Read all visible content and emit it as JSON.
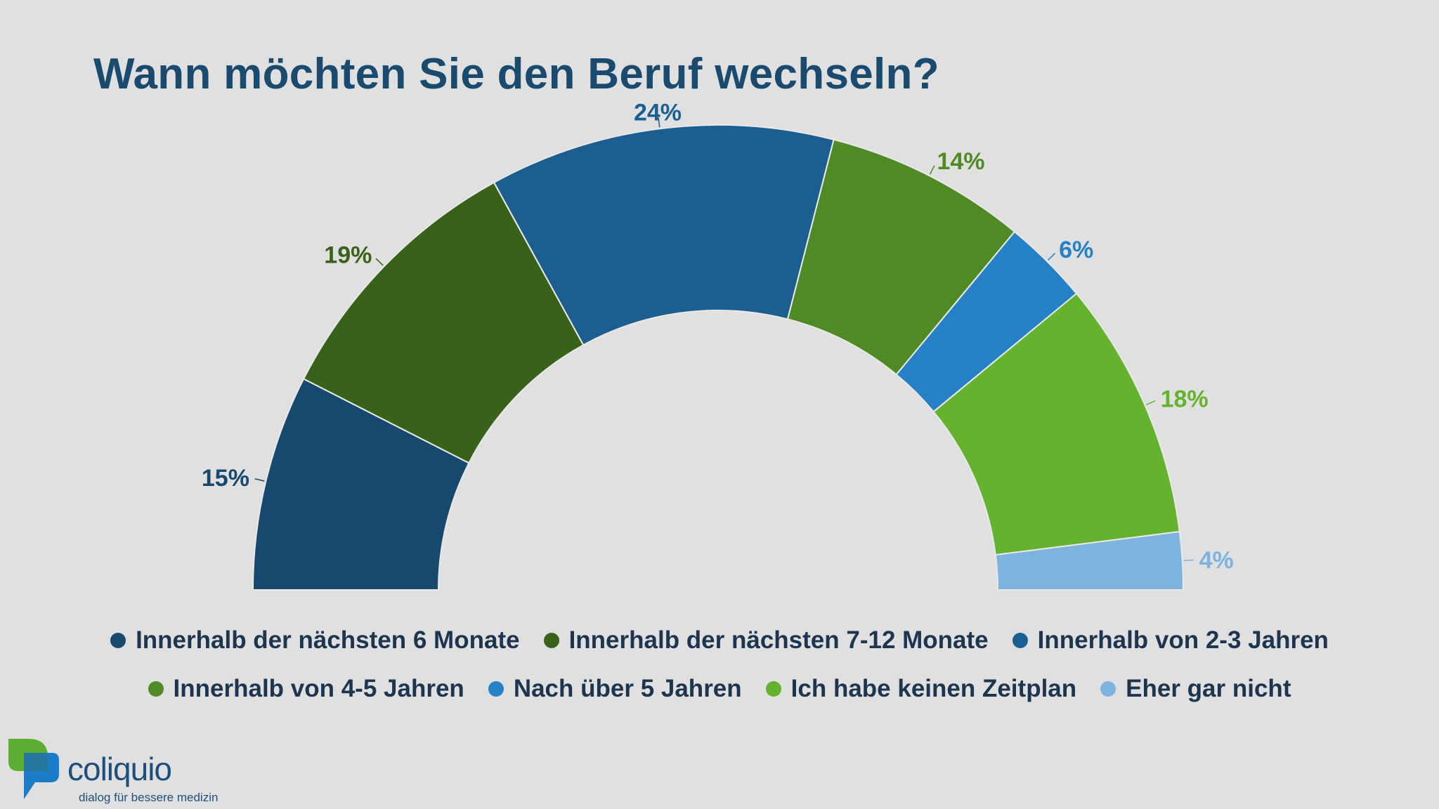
{
  "chart_data": {
    "type": "pie",
    "variant": "semicircle-donut",
    "title": "Wann möchten Sie den Beruf wechseln?",
    "unit": "%",
    "legend_position": "bottom",
    "slices": [
      {
        "label": "Innerhalb der nächsten 6 Monate",
        "value": 15,
        "value_label": "15%",
        "color": "#16496d"
      },
      {
        "label": "Innerhalb der nächsten 7-12 Monate",
        "value": 19,
        "value_label": "19%",
        "color": "#38621a"
      },
      {
        "label": "Innerhalb von 2-3 Jahren",
        "value": 24,
        "value_label": "24%",
        "color": "#1c5e90"
      },
      {
        "label": "Innerhalb von 4-5 Jahren",
        "value": 14,
        "value_label": "14%",
        "color": "#4f8a25"
      },
      {
        "label": "Nach über 5 Jahren",
        "value": 6,
        "value_label": "6%",
        "color": "#2680c6"
      },
      {
        "label": "Ich habe keinen Zeitplan",
        "value": 18,
        "value_label": "18%",
        "color": "#64b22e"
      },
      {
        "label": "Eher gar nicht",
        "value": 4,
        "value_label": "4%",
        "color": "#7db3de"
      }
    ]
  },
  "brand": {
    "name": "coliquio",
    "tagline": "dialog für bessere medizin",
    "logo_colors": [
      "#5cae32",
      "#1d7cc8"
    ]
  }
}
